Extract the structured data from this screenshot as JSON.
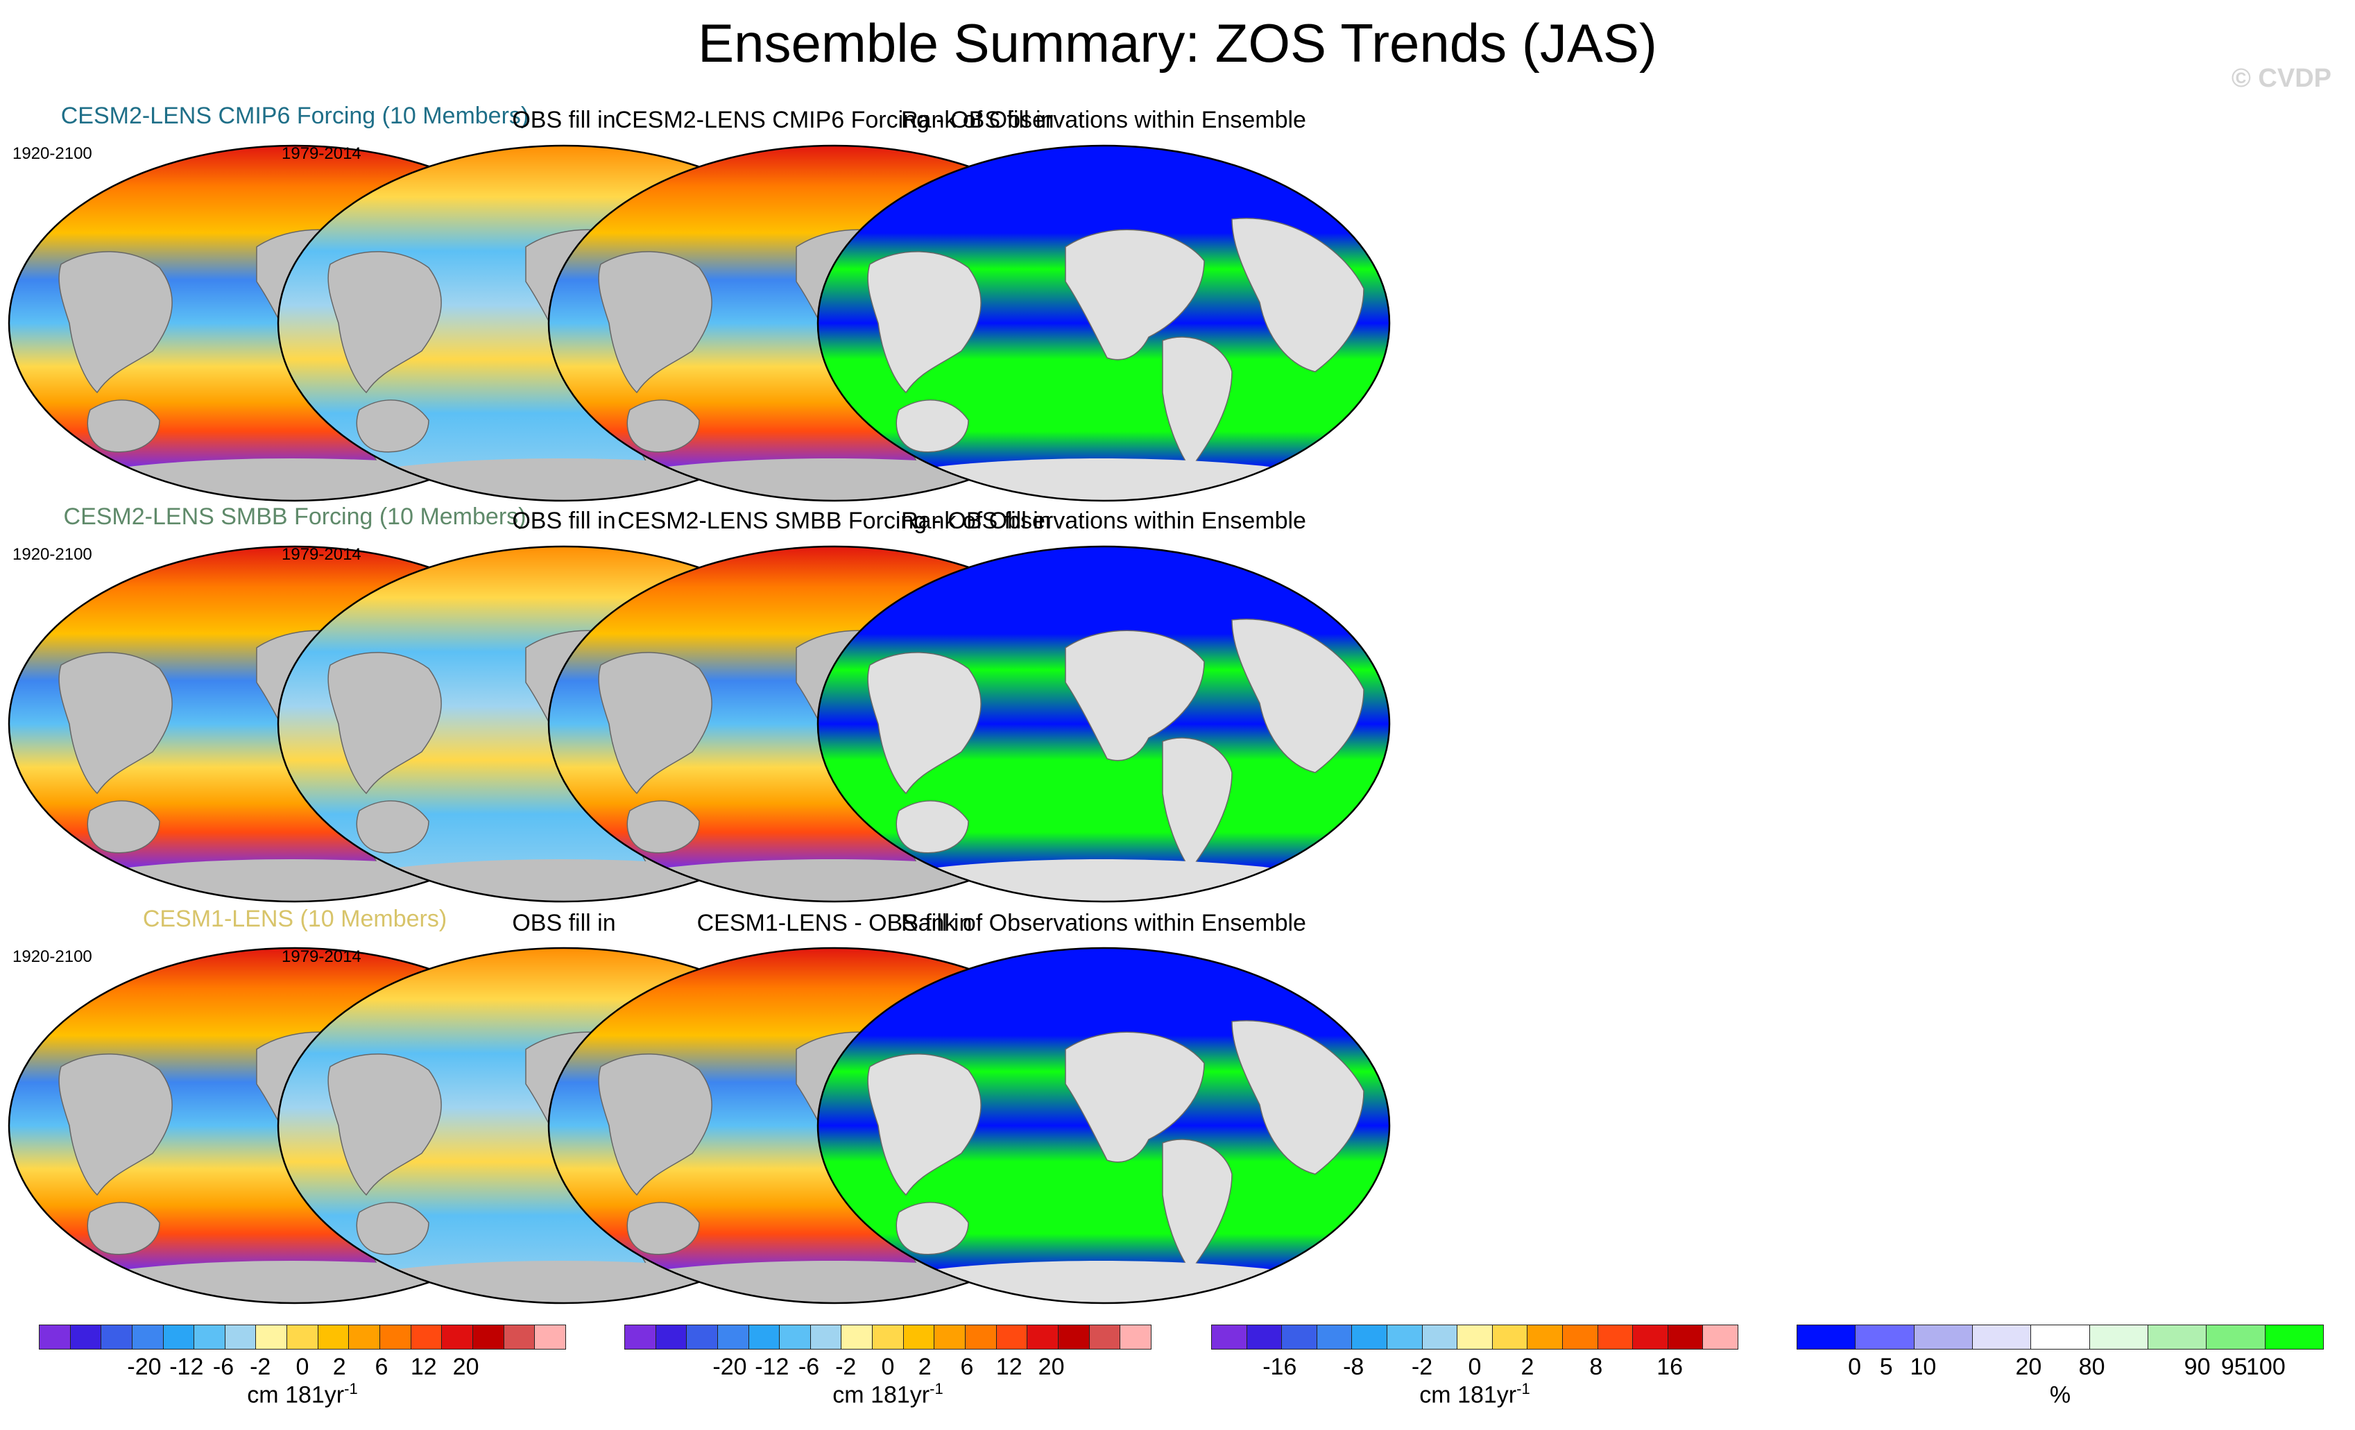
{
  "title": "Ensemble Summary: ZOS Trends (JAS)",
  "watermark": "© CVDP",
  "rows": [
    {
      "model_title": "CESM2-LENS CMIP6 Forcing (10 Members)",
      "model_title_color": "#1f6f88",
      "model_period": "1920-2100",
      "obs_title": "OBS fill in",
      "obs_period": "1979-2014",
      "diff_title": "CESM2-LENS CMIP6 Forcing - OBS fill in",
      "rank_title": "Rank of Observations within Ensemble"
    },
    {
      "model_title": "CESM2-LENS SMBB Forcing (10 Members)",
      "model_title_color": "#5f8a6a",
      "model_period": "1920-2100",
      "obs_title": "OBS fill in",
      "obs_period": "1979-2014",
      "diff_title": "CESM2-LENS SMBB Forcing - OBS fill in",
      "rank_title": "Rank of Observations within Ensemble"
    },
    {
      "model_title": "CESM1-LENS (10 Members)",
      "model_title_color": "#d8c46a",
      "model_period": "1920-2100",
      "obs_title": "OBS fill in",
      "obs_period": "1979-2014",
      "diff_title": "CESM1-LENS - OBS fill in",
      "rank_title": "Rank of Observations within Ensemble"
    }
  ],
  "chart_data": {
    "type": "heatmap",
    "layout": "3 rows x 4 columns of global maps",
    "colorbars": [
      {
        "colors": [
          "#7b2fe0",
          "#3c20e0",
          "#3a5ee8",
          "#3d85f0",
          "#2aa5f5",
          "#5cc0f5",
          "#a0d4f0",
          "#fff4a0",
          "#ffd84a",
          "#ffc000",
          "#ffa000",
          "#ff7a00",
          "#ff4a10",
          "#e01010",
          "#c00000",
          "#d85050",
          "#ffb0b0"
        ],
        "tick_labels": [
          "-20",
          "-12",
          "-6",
          "-2",
          "0",
          "2",
          "6",
          "12",
          "20"
        ],
        "tick_positions": [
          0.2,
          0.28,
          0.35,
          0.42,
          0.5,
          0.57,
          0.65,
          0.73,
          0.81
        ],
        "unit": "cm 181yr",
        "unit_exp": "-1"
      },
      {
        "colors": [
          "#7b2fe0",
          "#3c20e0",
          "#3a5ee8",
          "#3d85f0",
          "#2aa5f5",
          "#5cc0f5",
          "#a0d4f0",
          "#fff4a0",
          "#ffd84a",
          "#ffc000",
          "#ffa000",
          "#ff7a00",
          "#ff4a10",
          "#e01010",
          "#c00000",
          "#d85050",
          "#ffb0b0"
        ],
        "tick_labels": [
          "-20",
          "-12",
          "-6",
          "-2",
          "0",
          "2",
          "6",
          "12",
          "20"
        ],
        "tick_positions": [
          0.2,
          0.28,
          0.35,
          0.42,
          0.5,
          0.57,
          0.65,
          0.73,
          0.81
        ],
        "unit": "cm 181yr",
        "unit_exp": "-1"
      },
      {
        "colors": [
          "#7b2fe0",
          "#3c20e0",
          "#3a5ee8",
          "#3d85f0",
          "#2aa5f5",
          "#5cc0f5",
          "#a0d4f0",
          "#fff4a0",
          "#ffd84a",
          "#ffa000",
          "#ff7a00",
          "#ff4a10",
          "#e01010",
          "#c00000",
          "#ffb0b0"
        ],
        "tick_labels": [
          "-16",
          "-8",
          "-2",
          "0",
          "2",
          "8",
          "16"
        ],
        "tick_positions": [
          0.13,
          0.27,
          0.4,
          0.5,
          0.6,
          0.73,
          0.87
        ],
        "unit": "cm 181yr",
        "unit_exp": "-1"
      },
      {
        "colors": [
          "#0010ff",
          "#6a6aff",
          "#b0b0f0",
          "#e0e0fa",
          "#ffffff",
          "#e0fae0",
          "#b0f0b0",
          "#80f080",
          "#10ff10"
        ],
        "tick_labels": [
          "0",
          "5",
          "10",
          "20",
          "80",
          "90",
          "95",
          "100"
        ],
        "tick_positions": [
          0.11,
          0.17,
          0.24,
          0.44,
          0.56,
          0.76,
          0.83,
          0.89
        ],
        "unit": "%",
        "unit_exp": ""
      }
    ]
  }
}
